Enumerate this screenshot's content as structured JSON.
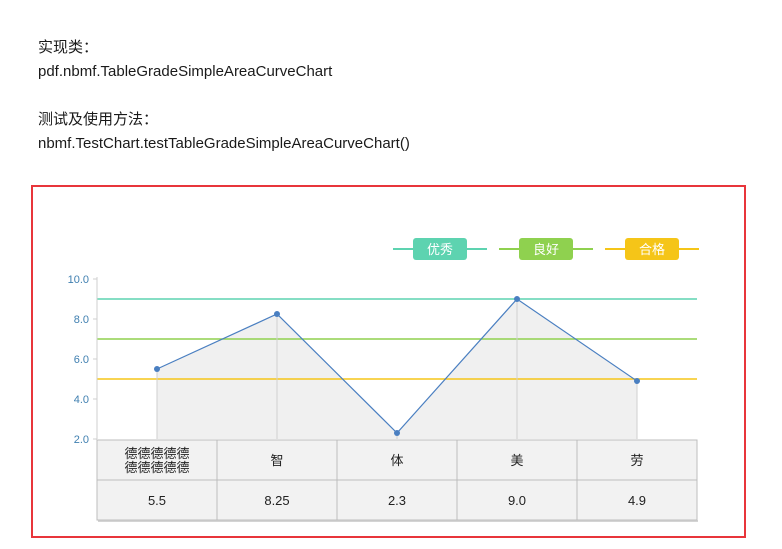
{
  "doc": {
    "impl_label": "实现类：",
    "impl_class": "pdf.nbmf.TableGradeSimpleAreaCurveChart",
    "test_label": "测试及使用方法：",
    "test_method": "nbmf.TestChart.testTableGradeSimpleAreaCurveChart()"
  },
  "chart_data": {
    "type": "line",
    "categories": [
      "德德德德德德德德德德",
      "智",
      "体",
      "美",
      "劳"
    ],
    "category_lines": [
      [
        "德德德德德",
        "德德德德德"
      ],
      [
        "智"
      ],
      [
        "体"
      ],
      [
        "美"
      ],
      [
        "劳"
      ]
    ],
    "values": [
      5.5,
      8.25,
      2.3,
      9.0,
      4.9
    ],
    "value_labels": [
      "5.5",
      "8.25",
      "2.3",
      "9.0",
      "4.9"
    ],
    "ylim": [
      2.0,
      10.0
    ],
    "yticks": [
      10.0,
      8.0,
      6.0,
      4.0,
      2.0
    ],
    "ytick_labels": [
      "10.0",
      "8.0",
      "6.0",
      "4.0",
      "2.0"
    ],
    "thresholds": [
      {
        "name": "优秀",
        "value": 9.0,
        "color": "#5dd3b0"
      },
      {
        "name": "良好",
        "value": 7.0,
        "color": "#8fd14f"
      },
      {
        "name": "合格",
        "value": 5.0,
        "color": "#f5c518"
      }
    ],
    "line_color": "#4a7fc1",
    "area_fill": "#f0f0f0",
    "table_header_fill": "#f2f2f2",
    "legend_placement": "top-right"
  }
}
